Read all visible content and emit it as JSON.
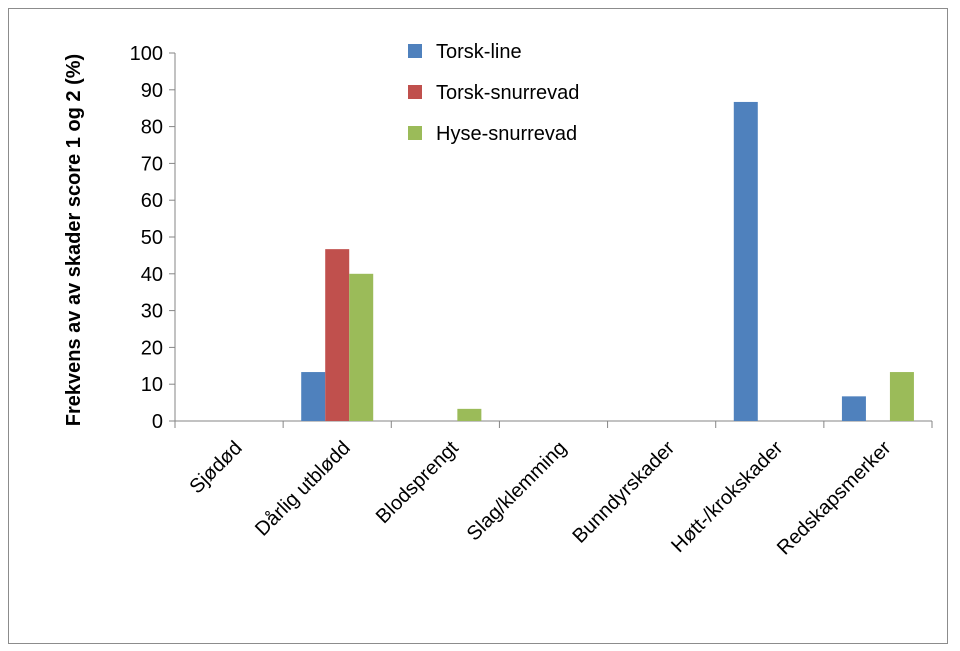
{
  "chart_data": {
    "type": "bar",
    "title": "",
    "xlabel": "",
    "ylabel": "Frekvens av av skader score 1 og 2 (%)",
    "categories": [
      "Sjødød",
      "Dårlig utblødd",
      "Blodsprengt",
      "Slag/klemming",
      "Bunndyrskader",
      "Høtt-/krokskader",
      "Redskapsmerker"
    ],
    "series": [
      {
        "name": "Torsk-line",
        "color": "#4f81bd",
        "values": [
          0,
          13.3,
          0,
          0,
          0,
          86.7,
          6.7
        ]
      },
      {
        "name": "Torsk-snurrevad",
        "color": "#c0504d",
        "values": [
          0,
          46.7,
          0,
          0,
          0,
          0,
          0
        ]
      },
      {
        "name": "Hyse-snurrevad",
        "color": "#9bbb59",
        "values": [
          0,
          40,
          3.3,
          0,
          0,
          0,
          13.3
        ]
      }
    ],
    "ylim": [
      0,
      100
    ],
    "yticks": [
      0,
      10,
      20,
      30,
      40,
      50,
      60,
      70,
      80,
      90,
      100
    ],
    "grid": false,
    "legend_position": "top-center"
  }
}
